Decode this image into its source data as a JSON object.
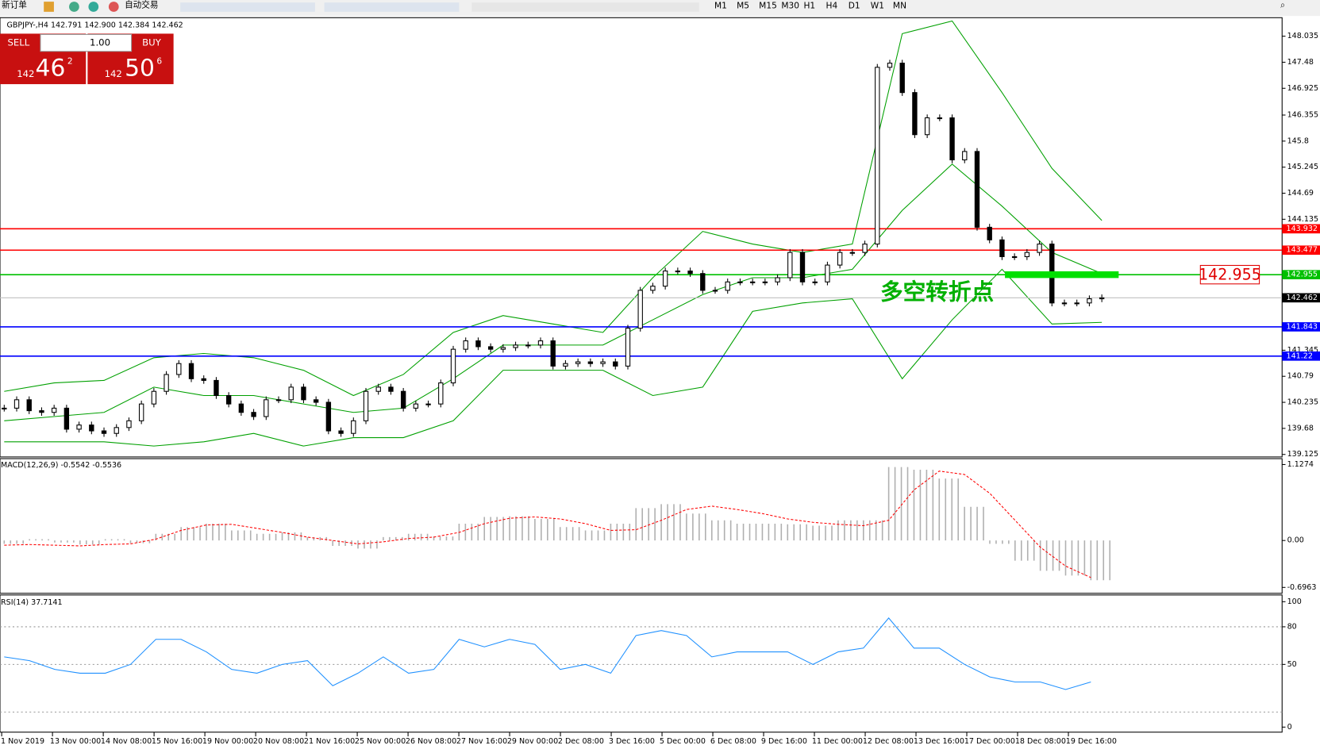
{
  "toolbar": {
    "new_order": "新订单",
    "auto_trading": "自动交易",
    "timeframes": [
      "M1",
      "M5",
      "M15",
      "M30",
      "H1",
      "H4",
      "D1",
      "W1",
      "MN"
    ]
  },
  "trade_panel": {
    "sell": "SELL",
    "buy": "BUY",
    "lots": "1.00",
    "sell_price": {
      "prefix": "142",
      "big": "46",
      "sup": "2"
    },
    "buy_price": {
      "prefix": "142",
      "big": "50",
      "sup": "6"
    }
  },
  "chart": {
    "header": "GBPJPY-,H4  142.791 142.900 142.384 142.462",
    "ylim": [
      139.125,
      148.035
    ],
    "yticks": [
      148.035,
      147.48,
      146.925,
      146.355,
      145.8,
      145.245,
      144.69,
      144.135,
      141.345,
      140.79,
      140.235,
      139.68,
      139.125
    ],
    "closes": [
      140.111,
      140.29,
      140.057,
      140.021,
      140.111,
      139.663,
      139.752,
      139.627,
      139.573,
      139.698,
      139.842,
      140.2,
      140.469,
      140.828,
      141.061,
      140.738,
      140.702,
      140.38,
      140.2,
      140.021,
      139.932,
      140.29,
      140.29,
      140.559,
      140.29,
      140.236,
      139.627,
      139.573,
      139.842,
      140.469,
      140.559,
      140.469,
      140.111,
      140.2,
      140.2,
      140.649,
      141.366,
      141.545,
      141.42,
      141.366,
      141.402,
      141.455,
      141.455,
      141.545,
      141.007,
      141.061,
      141.097,
      141.061,
      141.097,
      141.007,
      141.814,
      142.621,
      142.71,
      143.033,
      143.033,
      142.979,
      142.621,
      142.621,
      142.8,
      142.8,
      142.8,
      142.8,
      142.89,
      143.428,
      142.8,
      142.8,
      143.159,
      143.428,
      143.428,
      143.607,
      147.372,
      147.461,
      146.834,
      145.937,
      146.296,
      146.296,
      145.4,
      145.579,
      143.965,
      143.696,
      143.338,
      143.338,
      143.428,
      143.607,
      142.352,
      142.352,
      142.352,
      142.441,
      142.462
    ],
    "bands": {
      "color": "#00a000",
      "upper": [
        140.469,
        140.649,
        140.702,
        141.186,
        141.276,
        141.186,
        140.918,
        140.38,
        140.828,
        141.724,
        142.083,
        141.904,
        141.724,
        142.89,
        143.876,
        143.607,
        143.428,
        143.607,
        148.089,
        148.358,
        146.834,
        145.22,
        144.109
      ],
      "middle": [
        139.842,
        139.932,
        140.021,
        140.559,
        140.38,
        140.38,
        140.2,
        140.021,
        140.111,
        140.738,
        141.455,
        141.455,
        141.455,
        141.993,
        142.531,
        142.89,
        142.89,
        143.069,
        144.324,
        145.31,
        144.414,
        143.428,
        142.979
      ],
      "lower": [
        139.394,
        139.394,
        139.394,
        139.304,
        139.394,
        139.573,
        139.304,
        139.483,
        139.483,
        139.842,
        140.918,
        140.918,
        140.918,
        140.38,
        140.559,
        142.173,
        142.352,
        142.441,
        140.738,
        141.993,
        143.069,
        141.904,
        141.939
      ]
    },
    "levels": [
      {
        "value": 143.932,
        "color": "#ff0000"
      },
      {
        "value": 143.477,
        "color": "#ff0000"
      },
      {
        "value": 142.955,
        "color": "#00c000"
      },
      {
        "value": 141.843,
        "color": "#0000ff"
      },
      {
        "value": 141.22,
        "color": "#0000ff"
      }
    ],
    "current": {
      "value": 142.462,
      "color": "#c0c0c0"
    },
    "marker": 142.955,
    "annotation": "多空转折点"
  },
  "macd": {
    "label": "MACD(12,26,9) -0.5542 -0.5536",
    "ylim": [
      -0.6963,
      1.1274
    ],
    "yticks": [
      1.1274,
      {
        "value": 0,
        "label": "0.00"
      },
      -0.6963
    ],
    "histogram": [
      -0.05,
      0.02,
      -0.03,
      -0.06,
      0.02,
      -0.04,
      0.1,
      0.2,
      0.25,
      0.15,
      0.1,
      0.12,
      0.05,
      -0.08,
      -0.12,
      0.05,
      0.1,
      0.06,
      0.25,
      0.35,
      0.36,
      0.32,
      0.2,
      0.15,
      0.25,
      0.48,
      0.54,
      0.4,
      0.3,
      0.25,
      0.25,
      0.24,
      0.22,
      0.3,
      0.3,
      1.09,
      1.05,
      0.92,
      0.5,
      -0.05,
      -0.3,
      -0.45,
      -0.52,
      -0.59
    ],
    "signal": [
      -0.07,
      -0.06,
      -0.07,
      -0.08,
      -0.06,
      -0.05,
      0.02,
      0.15,
      0.23,
      0.24,
      0.18,
      0.12,
      0.05,
      0.0,
      -0.05,
      -0.02,
      0.03,
      0.05,
      0.12,
      0.25,
      0.33,
      0.35,
      0.32,
      0.25,
      0.15,
      0.16,
      0.3,
      0.46,
      0.51,
      0.46,
      0.4,
      0.32,
      0.27,
      0.24,
      0.22,
      0.3,
      0.75,
      1.03,
      0.98,
      0.7,
      0.3,
      -0.1,
      -0.38,
      -0.55
    ]
  },
  "rsi": {
    "label": "RSI(14) 37.7141",
    "ylim": [
      0,
      100
    ],
    "yticks": [
      100,
      80,
      50,
      0
    ],
    "levels": [
      80,
      50,
      12
    ],
    "values": [
      56,
      53,
      46,
      43,
      43,
      50,
      70,
      70,
      60,
      46,
      43,
      50,
      53,
      33,
      43,
      56,
      43,
      46,
      70,
      64,
      70,
      66,
      46,
      50,
      43,
      73,
      77,
      73,
      56,
      60,
      60,
      60,
      50,
      60,
      63,
      87,
      63,
      63,
      50,
      40,
      36,
      36,
      30,
      36
    ]
  },
  "time_axis": [
    "1 Nov 2019",
    "13 Nov 00:00",
    "14 Nov 08:00",
    "15 Nov 16:00",
    "19 Nov 00:00",
    "20 Nov 08:00",
    "21 Nov 16:00",
    "25 Nov 00:00",
    "26 Nov 08:00",
    "27 Nov 16:00",
    "29 Nov 00:00",
    "2 Dec 08:00",
    "3 Dec 16:00",
    "5 Dec 00:00",
    "6 Dec 08:00",
    "9 Dec 16:00",
    "11 Dec 00:00",
    "12 Dec 08:00",
    "13 Dec 16:00",
    "17 Dec 00:00",
    "18 Dec 08:00",
    "19 Dec 16:00"
  ]
}
